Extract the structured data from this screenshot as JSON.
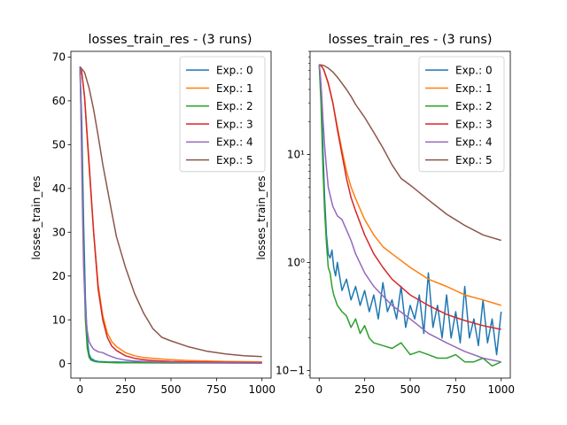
{
  "chart_data": [
    {
      "type": "line",
      "title": "losses_train_res - (3 runs)",
      "xlabel": "",
      "ylabel": "losses_train_res",
      "yscale": "linear",
      "xlim": [
        -50,
        1050
      ],
      "ylim": [
        -3.3,
        71.3
      ],
      "xticks": [
        0,
        250,
        500,
        750,
        1000
      ],
      "xtick_labels": [
        "0",
        "250",
        "500",
        "750",
        "1000"
      ],
      "yticks": [
        0,
        10,
        20,
        30,
        40,
        50,
        60,
        70
      ],
      "ytick_labels": [
        "0",
        "10",
        "20",
        "30",
        "40",
        "50",
        "60",
        "70"
      ],
      "grid": false,
      "legend_position": "top-right",
      "series": [
        {
          "name": "Exp.: 0",
          "color": "#1f77b4",
          "x": [
            0,
            10,
            20,
            30,
            40,
            50,
            60,
            80,
            100,
            150,
            200,
            300,
            400,
            500,
            700,
            1000
          ],
          "y": [
            67.8,
            55,
            32,
            15,
            5.5,
            2.2,
            1.2,
            0.7,
            0.5,
            0.4,
            0.35,
            0.3,
            0.3,
            0.28,
            0.25,
            0.25
          ]
        },
        {
          "name": "Exp.: 1",
          "color": "#ff7f0e",
          "x": [
            0,
            10,
            25,
            50,
            75,
            100,
            125,
            150,
            175,
            200,
            250,
            300,
            350,
            400,
            500,
            600,
            700,
            800,
            900,
            1000
          ],
          "y": [
            67.8,
            66.5,
            61,
            45,
            30,
            18,
            11,
            7,
            5,
            3.9,
            2.5,
            1.8,
            1.4,
            1.2,
            0.9,
            0.7,
            0.6,
            0.5,
            0.45,
            0.4
          ]
        },
        {
          "name": "Exp.: 2",
          "color": "#2ca02c",
          "x": [
            0,
            10,
            20,
            30,
            40,
            50,
            60,
            80,
            100,
            150,
            200,
            300,
            400,
            500,
            700,
            1000
          ],
          "y": [
            67.8,
            50,
            25,
            10,
            3.5,
            1.5,
            0.8,
            0.5,
            0.35,
            0.25,
            0.2,
            0.17,
            0.15,
            0.14,
            0.13,
            0.12
          ]
        },
        {
          "name": "Exp.: 3",
          "color": "#d62728",
          "x": [
            0,
            10,
            25,
            50,
            75,
            100,
            125,
            150,
            175,
            200,
            250,
            300,
            350,
            400,
            500,
            600,
            700,
            800,
            900,
            1000
          ],
          "y": [
            67.8,
            66.5,
            61,
            46,
            30,
            17,
            10,
            6,
            4,
            3,
            1.8,
            1.2,
            0.9,
            0.7,
            0.5,
            0.4,
            0.33,
            0.29,
            0.26,
            0.24
          ]
        },
        {
          "name": "Exp.: 4",
          "color": "#9467bd",
          "x": [
            0,
            5,
            10,
            15,
            20,
            30,
            40,
            50,
            60,
            75,
            100,
            125,
            150,
            175,
            200,
            250,
            300,
            400,
            500,
            600,
            700,
            800,
            900,
            1000
          ],
          "y": [
            67.8,
            58,
            45,
            32,
            22,
            12,
            7.5,
            5,
            4.2,
            3.3,
            2.7,
            2.5,
            2,
            1.6,
            1.2,
            0.8,
            0.6,
            0.4,
            0.3,
            0.22,
            0.18,
            0.15,
            0.13,
            0.12
          ]
        },
        {
          "name": "Exp.: 5",
          "color": "#8c564b",
          "x": [
            0,
            25,
            50,
            75,
            100,
            125,
            150,
            175,
            200,
            250,
            300,
            350,
            400,
            450,
            500,
            600,
            700,
            800,
            900,
            1000
          ],
          "y": [
            67.8,
            66.5,
            63,
            58,
            52,
            45.5,
            40,
            34.5,
            29,
            22,
            16,
            11.5,
            8,
            6,
            5.2,
            3.8,
            2.8,
            2.2,
            1.8,
            1.6
          ]
        }
      ]
    },
    {
      "type": "line",
      "title": "losses_train_res - (3 runs)",
      "xlabel": "",
      "ylabel": "losses_train_res",
      "yscale": "log",
      "xlim": [
        -50,
        1050
      ],
      "ylim": [
        0.085,
        90
      ],
      "xticks": [
        0,
        250,
        500,
        750,
        1000
      ],
      "xtick_labels": [
        "0",
        "250",
        "500",
        "750",
        "1000"
      ],
      "yticks": [
        0.1,
        1,
        10
      ],
      "ytick_labels": [
        "10−1",
        "10⁰",
        "10¹"
      ],
      "grid": false,
      "legend_position": "top-right",
      "series": [
        {
          "name": "Exp.: 0",
          "color": "#1f77b4",
          "x": [
            0,
            10,
            20,
            30,
            40,
            50,
            60,
            70,
            80,
            90,
            100,
            125,
            150,
            175,
            200,
            225,
            250,
            275,
            300,
            325,
            350,
            375,
            400,
            425,
            450,
            475,
            500,
            525,
            550,
            575,
            600,
            625,
            650,
            675,
            700,
            725,
            750,
            775,
            800,
            825,
            850,
            875,
            900,
            925,
            950,
            975,
            1000
          ],
          "y": [
            67.8,
            40,
            12,
            4,
            1.8,
            1.2,
            1.1,
            1.3,
            0.9,
            0.75,
            1.0,
            0.55,
            0.7,
            0.45,
            0.6,
            0.4,
            0.55,
            0.35,
            0.5,
            0.3,
            0.65,
            0.35,
            0.45,
            0.3,
            0.6,
            0.25,
            0.4,
            0.3,
            0.5,
            0.22,
            0.8,
            0.25,
            0.4,
            0.2,
            0.5,
            0.2,
            0.35,
            0.18,
            0.6,
            0.2,
            0.3,
            0.17,
            0.45,
            0.18,
            0.3,
            0.14,
            0.35
          ]
        },
        {
          "name": "Exp.: 1",
          "color": "#ff7f0e",
          "x": [
            0,
            10,
            25,
            50,
            75,
            100,
            125,
            150,
            175,
            200,
            250,
            300,
            350,
            400,
            500,
            600,
            700,
            800,
            900,
            1000
          ],
          "y": [
            67.8,
            66.5,
            61,
            45,
            30,
            18,
            11,
            7,
            5,
            3.9,
            2.5,
            1.8,
            1.4,
            1.2,
            0.9,
            0.7,
            0.6,
            0.5,
            0.45,
            0.4
          ]
        },
        {
          "name": "Exp.: 2",
          "color": "#2ca02c",
          "x": [
            0,
            10,
            20,
            30,
            40,
            50,
            60,
            70,
            80,
            100,
            125,
            150,
            175,
            200,
            225,
            250,
            275,
            300,
            350,
            400,
            450,
            500,
            550,
            600,
            650,
            700,
            750,
            800,
            850,
            900,
            950,
            1000
          ],
          "y": [
            67.8,
            30,
            8,
            3,
            1.5,
            0.9,
            0.8,
            0.6,
            0.5,
            0.4,
            0.35,
            0.32,
            0.25,
            0.3,
            0.22,
            0.26,
            0.2,
            0.18,
            0.17,
            0.16,
            0.18,
            0.14,
            0.15,
            0.14,
            0.13,
            0.13,
            0.14,
            0.12,
            0.12,
            0.13,
            0.11,
            0.12
          ]
        },
        {
          "name": "Exp.: 3",
          "color": "#d62728",
          "x": [
            0,
            10,
            25,
            50,
            75,
            100,
            125,
            150,
            175,
            200,
            250,
            300,
            350,
            400,
            500,
            600,
            700,
            800,
            900,
            1000
          ],
          "y": [
            67.8,
            66.5,
            61,
            46,
            30,
            17,
            10,
            6,
            4,
            3,
            1.8,
            1.2,
            0.9,
            0.7,
            0.5,
            0.4,
            0.33,
            0.29,
            0.26,
            0.24
          ]
        },
        {
          "name": "Exp.: 4",
          "color": "#9467bd",
          "x": [
            0,
            5,
            10,
            15,
            20,
            30,
            40,
            50,
            60,
            75,
            100,
            125,
            150,
            175,
            200,
            250,
            300,
            400,
            500,
            600,
            700,
            800,
            900,
            1000
          ],
          "y": [
            67.8,
            58,
            45,
            32,
            22,
            12,
            7.5,
            5,
            4.2,
            3.3,
            2.7,
            2.5,
            2,
            1.6,
            1.2,
            0.8,
            0.6,
            0.4,
            0.3,
            0.22,
            0.18,
            0.15,
            0.13,
            0.12
          ]
        },
        {
          "name": "Exp.: 5",
          "color": "#8c564b",
          "x": [
            0,
            25,
            50,
            75,
            100,
            125,
            150,
            175,
            200,
            250,
            300,
            350,
            400,
            450,
            500,
            600,
            700,
            800,
            900,
            1000
          ],
          "y": [
            67.8,
            66.5,
            63,
            58,
            52,
            45.5,
            40,
            34.5,
            29,
            22,
            16,
            11.5,
            8,
            6,
            5.2,
            3.8,
            2.8,
            2.2,
            1.8,
            1.6
          ]
        }
      ]
    }
  ]
}
